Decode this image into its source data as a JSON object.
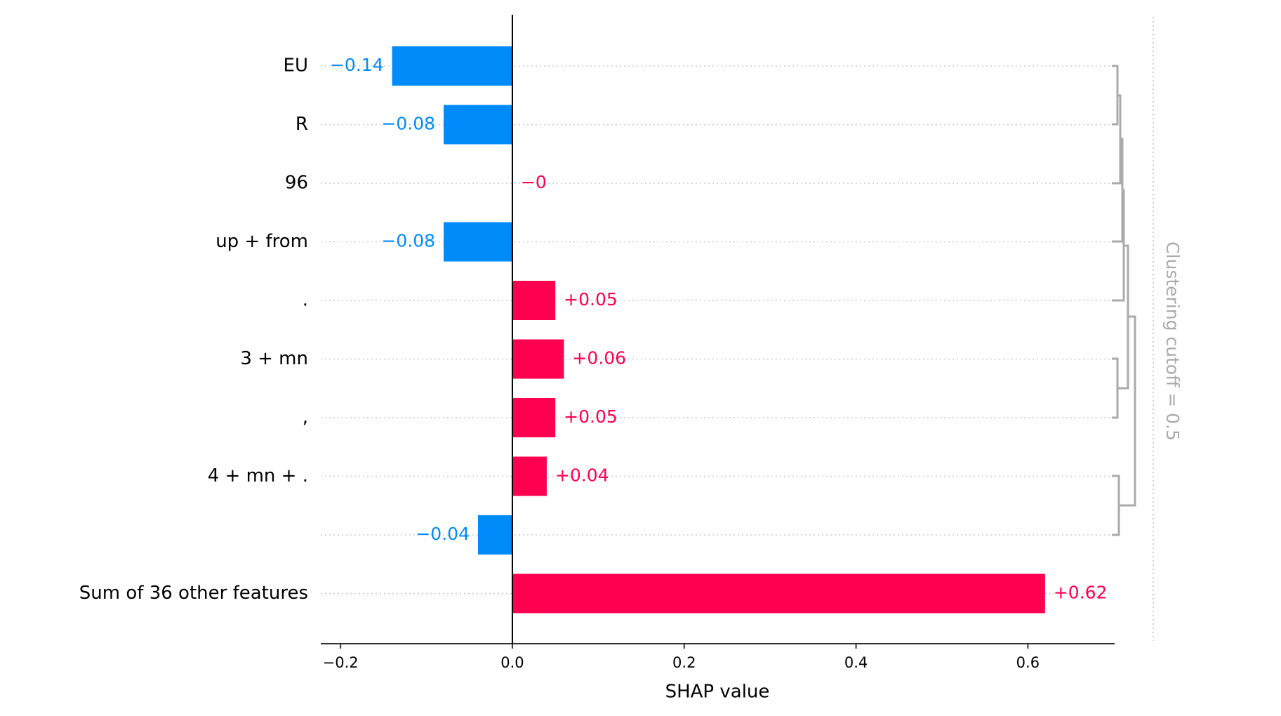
{
  "chart_data": {
    "type": "barh",
    "categories": [
      "EU",
      "R",
      "96",
      "up + from",
      ".",
      "3 + mn",
      ",",
      "4 + mn + .",
      null,
      "Sum of 36 other features"
    ],
    "values": [
      -0.14,
      -0.08,
      0,
      -0.08,
      0.05,
      0.06,
      0.05,
      0.04,
      -0.04,
      0.62
    ],
    "value_labels": [
      "−0.14",
      "−0.08",
      "−0",
      "−0.08",
      "+0.05",
      "+0.06",
      "+0.05",
      "+0.04",
      "−0.04",
      "+0.62"
    ],
    "negative_color": "#008bfb",
    "positive_color": "#ff0051",
    "xlim": [
      -0.223,
      0.701
    ],
    "xticks": [
      {
        "value": -0.2,
        "label": "−0.2"
      },
      {
        "value": 0,
        "label": "0.0"
      },
      0.2,
      0.4,
      0.6
    ],
    "xlabel": "SHAP value",
    "annotation": "Clustering cutoff = 0.5"
  }
}
